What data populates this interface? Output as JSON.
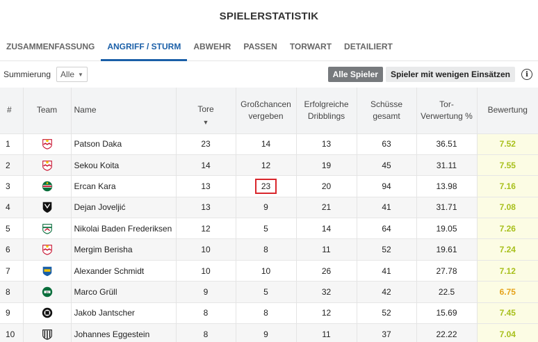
{
  "title": "SPIELERSTATISTIK",
  "tabs": [
    {
      "label": "ZUSAMMENFASSUNG",
      "active": false
    },
    {
      "label": "ANGRIFF / STURM",
      "active": true
    },
    {
      "label": "ABWEHR",
      "active": false
    },
    {
      "label": "PASSEN",
      "active": false
    },
    {
      "label": "TORWART",
      "active": false
    },
    {
      "label": "DETAILIERT",
      "active": false
    }
  ],
  "controls": {
    "summation_label": "Summierung",
    "summation_value": "Alle",
    "all_players_label": "Alle Spieler",
    "few_appearances_label": "Spieler mit wenigen Einsätzen",
    "info_icon": "i"
  },
  "columns": {
    "rank": "#",
    "team": "Team",
    "name": "Name",
    "goals": "Tore",
    "missed_1": "Großchancen",
    "missed_2": "vergeben",
    "dribbles_1": "Erfolgreiche",
    "dribbles_2": "Dribblings",
    "shots_1": "Schüsse",
    "shots_2": "gesamt",
    "conv_1": "Tor-",
    "conv_2": "Verwertung %",
    "rating": "Bewertung",
    "sort_caret": "▼"
  },
  "colors": {
    "accent": "#1a5fa8",
    "rating_green": "#a8c01c",
    "rating_orange": "#e6a21a",
    "highlight_border": "#d9262c"
  },
  "rows": [
    {
      "rank": "1",
      "team_icon": "salzburg-crest",
      "name": "Patson Daka",
      "goals": "23",
      "missed": "14",
      "dribbles": "13",
      "shots": "63",
      "conv": "36.51",
      "rating": "7.52",
      "rating_color": "#a8c01c"
    },
    {
      "rank": "2",
      "team_icon": "salzburg-crest",
      "name": "Sekou Koita",
      "goals": "14",
      "missed": "12",
      "dribbles": "19",
      "shots": "45",
      "conv": "31.11",
      "rating": "7.55",
      "rating_color": "#a8c01c"
    },
    {
      "rank": "3",
      "team_icon": "rapid-crest",
      "name": "Ercan Kara",
      "goals": "13",
      "missed": "23",
      "dribbles": "20",
      "shots": "94",
      "conv": "13.98",
      "rating": "7.16",
      "rating_color": "#a8c01c",
      "highlight_missed": true
    },
    {
      "rank": "4",
      "team_icon": "wac-crest",
      "name": "Dejan Joveljić",
      "goals": "13",
      "missed": "9",
      "dribbles": "21",
      "shots": "41",
      "conv": "31.71",
      "rating": "7.08",
      "rating_color": "#a8c01c"
    },
    {
      "rank": "5",
      "team_icon": "austria-crest",
      "name": "Nikolai Baden Frederiksen",
      "goals": "12",
      "missed": "5",
      "dribbles": "14",
      "shots": "64",
      "conv": "19.05",
      "rating": "7.26",
      "rating_color": "#a8c01c"
    },
    {
      "rank": "6",
      "team_icon": "salzburg-crest",
      "name": "Mergim Berisha",
      "goals": "10",
      "missed": "8",
      "dribbles": "11",
      "shots": "52",
      "conv": "19.61",
      "rating": "7.24",
      "rating_color": "#a8c01c"
    },
    {
      "rank": "7",
      "team_icon": "stpoelten-crest",
      "name": "Alexander Schmidt",
      "goals": "10",
      "missed": "10",
      "dribbles": "26",
      "shots": "41",
      "conv": "27.78",
      "rating": "7.12",
      "rating_color": "#a8c01c"
    },
    {
      "rank": "8",
      "team_icon": "ried-crest",
      "name": "Marco Grüll",
      "goals": "9",
      "missed": "5",
      "dribbles": "32",
      "shots": "42",
      "conv": "22.5",
      "rating": "6.75",
      "rating_color": "#e6a21a"
    },
    {
      "rank": "9",
      "team_icon": "sturm-crest",
      "name": "Jakob Jantscher",
      "goals": "8",
      "missed": "8",
      "dribbles": "12",
      "shots": "52",
      "conv": "15.69",
      "rating": "7.45",
      "rating_color": "#a8c01c"
    },
    {
      "rank": "10",
      "team_icon": "lask-crest",
      "name": "Johannes Eggestein",
      "goals": "8",
      "missed": "9",
      "dribbles": "11",
      "shots": "37",
      "conv": "22.22",
      "rating": "7.04",
      "rating_color": "#a8c01c"
    }
  ]
}
